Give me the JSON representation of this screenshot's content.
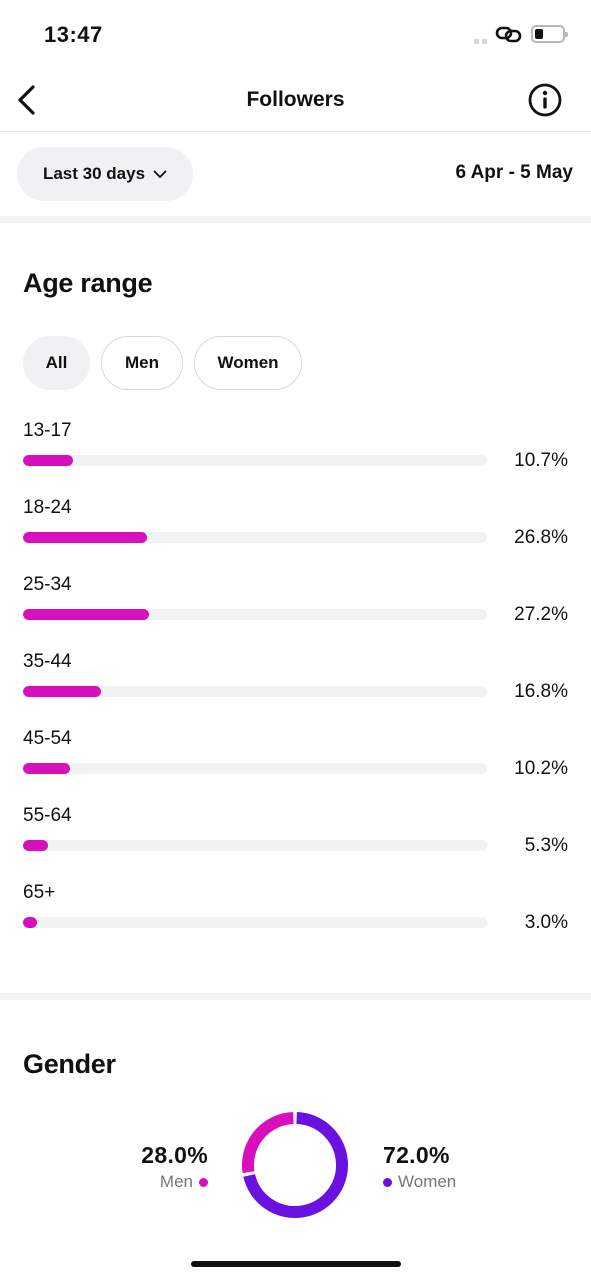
{
  "status_bar": {
    "time": "13:47",
    "battery_level": 0.3
  },
  "nav": {
    "title": "Followers",
    "back_icon": "chevron-left-icon",
    "info_icon": "info-circle-icon"
  },
  "filter": {
    "range_label": "Last 30 days",
    "dropdown_icon": "chevron-down-icon",
    "date_range": "6 Apr - 5 May"
  },
  "age_range": {
    "title": "Age range",
    "tabs": [
      {
        "label": "All",
        "active": true
      },
      {
        "label": "Men",
        "active": false
      },
      {
        "label": "Women",
        "active": false
      }
    ],
    "bar_color": "#d80fbf",
    "rows": [
      {
        "label": "13-17",
        "value": "10.7%",
        "fraction": 0.107
      },
      {
        "label": "18-24",
        "value": "26.8%",
        "fraction": 0.268
      },
      {
        "label": "25-34",
        "value": "27.2%",
        "fraction": 0.272
      },
      {
        "label": "35-44",
        "value": "16.8%",
        "fraction": 0.168
      },
      {
        "label": "45-54",
        "value": "10.2%",
        "fraction": 0.102
      },
      {
        "label": "55-64",
        "value": "5.3%",
        "fraction": 0.053
      },
      {
        "label": "65+",
        "value": "3.0%",
        "fraction": 0.03
      }
    ]
  },
  "gender": {
    "title": "Gender",
    "men": {
      "percent": "28.0%",
      "label": "Men",
      "fraction": 0.28,
      "color": "#d80fbf"
    },
    "women": {
      "percent": "72.0%",
      "label": "Women",
      "fraction": 0.72,
      "color": "#6a10e0"
    }
  }
}
